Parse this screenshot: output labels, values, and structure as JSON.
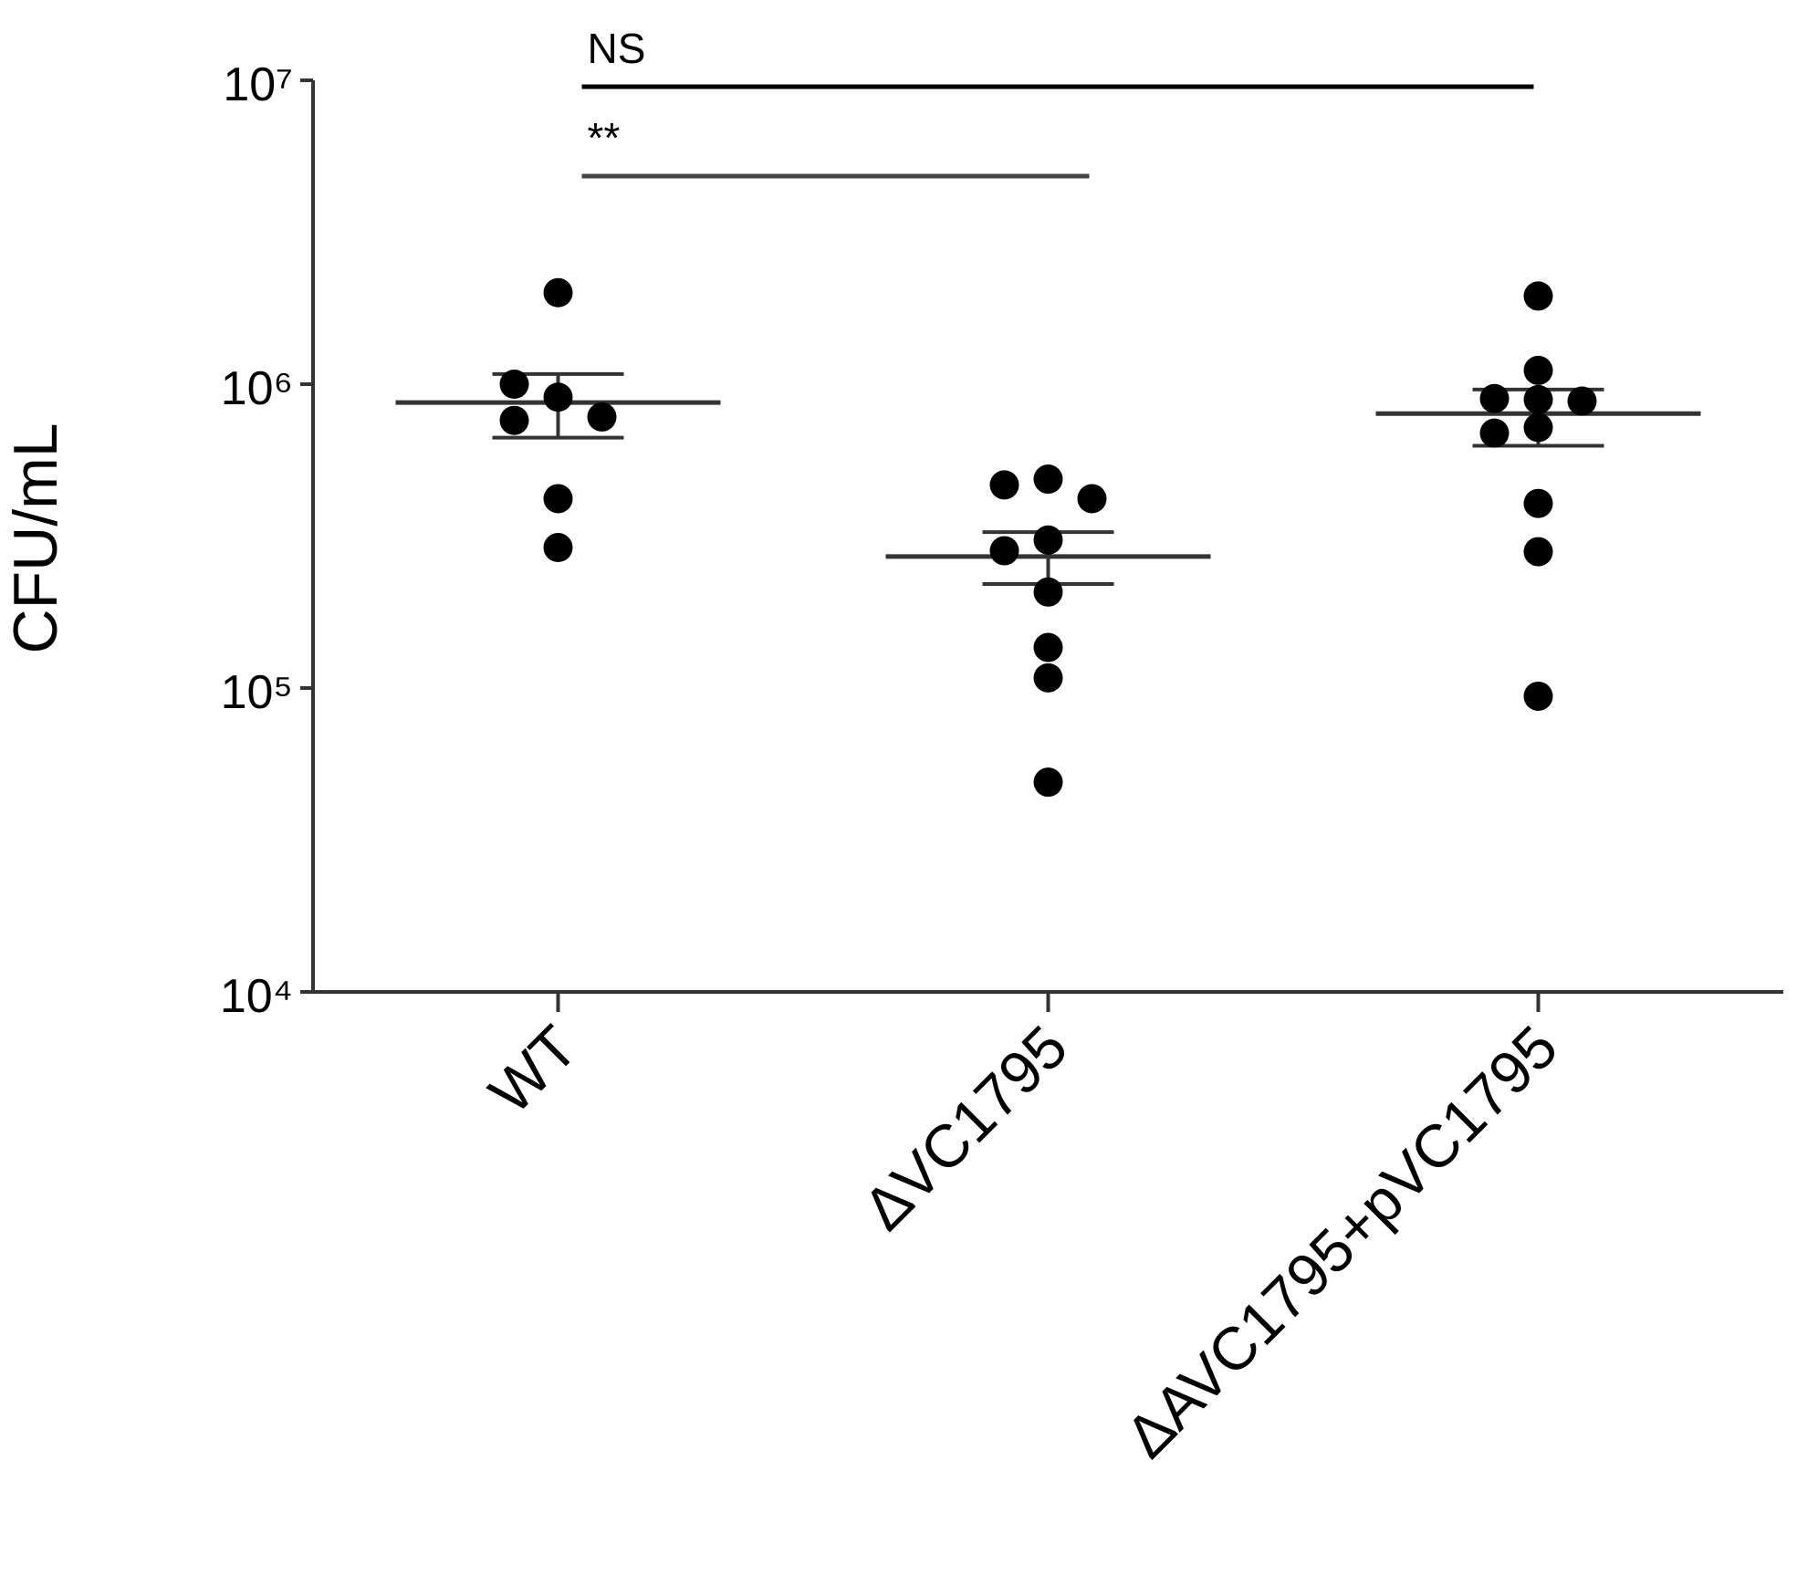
{
  "chart_data": {
    "type": "dotplot",
    "y_label": "CFU/mL",
    "categories": [
      "WT",
      "ΔVC1795",
      "ΔAVC1795+pVC1795"
    ],
    "log_y": true,
    "ylim": [
      10000,
      10000000
    ],
    "yticks": [
      {
        "value": 10000,
        "label": "10⁴"
      },
      {
        "value": 100000,
        "label": "10⁵"
      },
      {
        "value": 1000000,
        "label": "10⁶"
      },
      {
        "value": 10000000,
        "label": "10⁷"
      }
    ],
    "color": "#000000",
    "groups": [
      {
        "values": [
          2000000,
          906000,
          1000000,
          760000,
          780000,
          420000,
          290000
        ],
        "mean": 870000,
        "error": [
          667000,
          1080000
        ]
      },
      {
        "values": [
          487000,
          466000,
          420000,
          307000,
          283000,
          207000,
          136000,
          108000,
          49000
        ],
        "mean": 271000,
        "error": [
          220000,
          326000
        ]
      },
      {
        "values": [
          1950000,
          1110000,
          890000,
          897000,
          880000,
          720000,
          690000,
          405000,
          281000,
          94000
        ],
        "mean": 800000,
        "error": [
          627000,
          960000
        ]
      }
    ],
    "annotations": [
      {
        "text": "NS",
        "from": 0,
        "to": 2
      },
      {
        "text": "**",
        "from": 0,
        "to": 1
      }
    ]
  }
}
